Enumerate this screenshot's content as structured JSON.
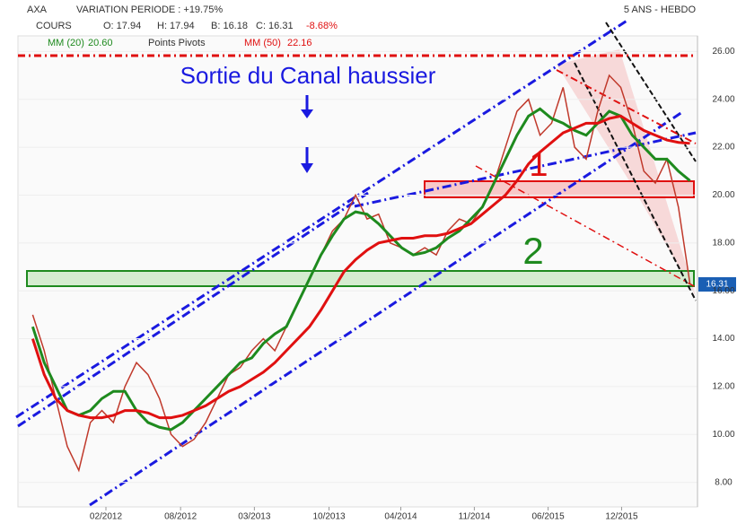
{
  "chart_data": {
    "type": "line",
    "header": {
      "symbol": "AXA",
      "variation": "VARIATION PERIODE : +19.75%",
      "period": "5 ANS - HEBDO",
      "open": "O: 17.94",
      "high": "H: 17.94",
      "low": "B: 16.18",
      "close": "C: 16.31",
      "change": "-8.68%",
      "mm20_value": "20.60",
      "pivots": "Points Pivots",
      "mm50_value": "22.16",
      "last_price": "16.31"
    },
    "annotations": {
      "title": "Sortie du Canal haussier",
      "zone1": "1",
      "zone2": "2"
    },
    "x": [
      0,
      4,
      8,
      12,
      16,
      20,
      24,
      28,
      32,
      36,
      40,
      44,
      48,
      52,
      56,
      60,
      64,
      68,
      72,
      76,
      80,
      84,
      88,
      92,
      96,
      100,
      104,
      108,
      112,
      116,
      120,
      124,
      128,
      132,
      136,
      140,
      144,
      148,
      152,
      156,
      160,
      164,
      168,
      172,
      176,
      180,
      184,
      188,
      192,
      196,
      200,
      204,
      208,
      212,
      216,
      220,
      224,
      228
    ],
    "xlim": [
      -2,
      230
    ],
    "xticks": [
      {
        "value": 25.4,
        "label": "02/2012"
      },
      {
        "value": 51.3,
        "label": "08/2012"
      },
      {
        "value": 76.9,
        "label": "03/2013"
      },
      {
        "value": 102.8,
        "label": "10/2013"
      },
      {
        "value": 127.7,
        "label": "04/2014"
      },
      {
        "value": 153.2,
        "label": "11/2014"
      },
      {
        "value": 178.8,
        "label": "06/2015"
      },
      {
        "value": 204.3,
        "label": "12/2015"
      }
    ],
    "ylim": [
      7.2,
      26.5
    ],
    "yticks": [
      {
        "value": 8,
        "label": "8.00"
      },
      {
        "value": 10,
        "label": "10.00"
      },
      {
        "value": 12,
        "label": "12.00"
      },
      {
        "value": 14,
        "label": "14.00"
      },
      {
        "value": 16,
        "label": "16.00"
      },
      {
        "value": 18,
        "label": "18.00"
      },
      {
        "value": 20,
        "label": "20.00"
      },
      {
        "value": 22,
        "label": "22.00"
      },
      {
        "value": 24,
        "label": "24.00"
      },
      {
        "value": 26,
        "label": "26.00"
      }
    ],
    "series": [
      {
        "name": "COURS",
        "color": "#c0392b",
        "values": [
          15.0,
          13.5,
          11.5,
          9.5,
          8.5,
          10.5,
          11.0,
          10.5,
          12.0,
          13.0,
          12.5,
          11.5,
          10.0,
          9.5,
          9.8,
          10.5,
          11.5,
          12.5,
          12.8,
          13.5,
          14.0,
          13.5,
          14.5,
          15.5,
          16.5,
          17.5,
          18.5,
          19.0,
          20.0,
          19.0,
          19.2,
          18.0,
          17.8,
          17.5,
          17.8,
          17.5,
          18.5,
          19.0,
          18.8,
          19.5,
          20.5,
          22.0,
          23.5,
          24.0,
          22.5,
          23.0,
          24.5,
          22.0,
          21.5,
          23.5,
          25.0,
          24.5,
          23.0,
          21.0,
          20.5,
          21.5,
          19.5,
          16.3
        ]
      },
      {
        "name": "MM (20)",
        "color": "#1e8a1e",
        "values": [
          14.5,
          13.0,
          12.0,
          11.0,
          10.8,
          11.0,
          11.5,
          11.8,
          11.8,
          11.0,
          10.5,
          10.3,
          10.2,
          10.5,
          11.0,
          11.5,
          12.0,
          12.5,
          13.0,
          13.2,
          13.8,
          14.2,
          14.5,
          15.5,
          16.5,
          17.5,
          18.3,
          19.0,
          19.3,
          19.2,
          18.8,
          18.3,
          17.8,
          17.5,
          17.6,
          17.8,
          18.2,
          18.5,
          19.0,
          19.5,
          20.5,
          21.5,
          22.5,
          23.3,
          23.6,
          23.2,
          23.0,
          22.7,
          22.5,
          23.0,
          23.5,
          23.3,
          22.5,
          22.0,
          21.5,
          21.5,
          21.0,
          20.6
        ]
      },
      {
        "name": "MM (50)",
        "color": "#e01010",
        "values": [
          14.0,
          12.5,
          11.5,
          11.0,
          10.8,
          10.7,
          10.7,
          10.8,
          11.0,
          11.0,
          10.9,
          10.7,
          10.7,
          10.8,
          11.0,
          11.2,
          11.5,
          11.8,
          12.0,
          12.3,
          12.6,
          13.0,
          13.5,
          14.0,
          14.5,
          15.2,
          16.0,
          16.8,
          17.3,
          17.7,
          18.0,
          18.1,
          18.2,
          18.2,
          18.3,
          18.3,
          18.4,
          18.6,
          18.8,
          19.2,
          19.6,
          20.0,
          20.6,
          21.3,
          21.8,
          22.2,
          22.6,
          22.8,
          23.0,
          23.0,
          23.2,
          23.3,
          23.0,
          22.7,
          22.5,
          22.3,
          22.2,
          22.16
        ]
      }
    ]
  }
}
